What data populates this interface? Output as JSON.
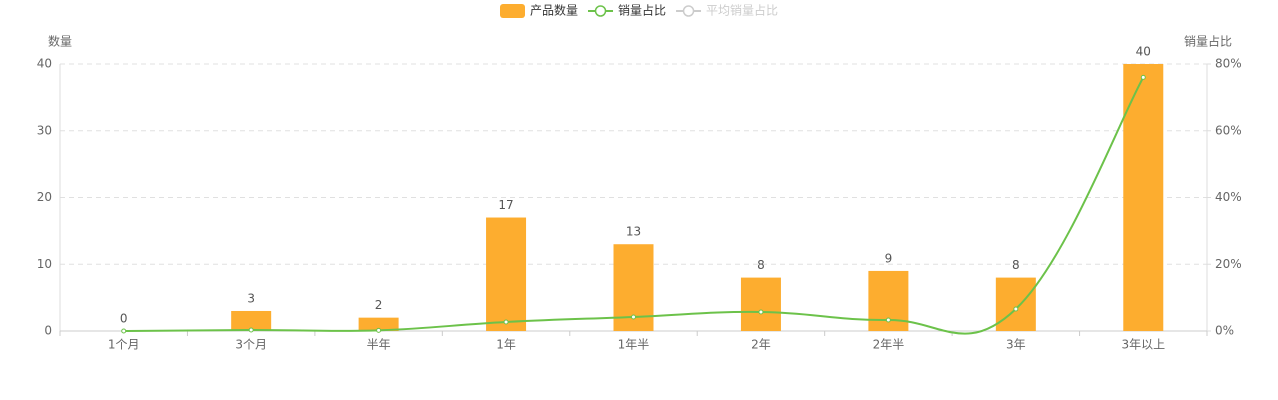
{
  "chart_data": {
    "type": "bar-line",
    "y_label": "数量",
    "y2_label": "销量占比",
    "categories": [
      "1个月",
      "3个月",
      "半年",
      "1年",
      "1年半",
      "2年",
      "2年半",
      "3年",
      "3年以上"
    ],
    "series": [
      {
        "name": "产品数量",
        "type": "bar",
        "color": "#fdad2f",
        "values": [
          0,
          3,
          2,
          17,
          13,
          8,
          9,
          8,
          40
        ]
      },
      {
        "name": "销量占比",
        "type": "line",
        "axis": "y2",
        "color": "#6cc24a",
        "values": [
          0,
          0.3,
          0.2,
          2.7,
          4.2,
          5.7,
          3.3,
          6.6,
          76
        ]
      },
      {
        "name": "平均销量占比",
        "type": "line",
        "color": "#cccccc",
        "hidden": true
      }
    ],
    "ylim": [
      0,
      40
    ],
    "yticks": [
      0,
      10,
      20,
      30,
      40
    ],
    "y2lim": [
      0,
      80
    ],
    "y2ticks": [
      {
        "value": 0,
        "label": "0%"
      },
      {
        "value": 20,
        "label": "20%"
      },
      {
        "value": 40,
        "label": "40%"
      },
      {
        "value": 60,
        "label": "60%"
      },
      {
        "value": 80,
        "label": "80%"
      }
    ],
    "grid": true
  }
}
